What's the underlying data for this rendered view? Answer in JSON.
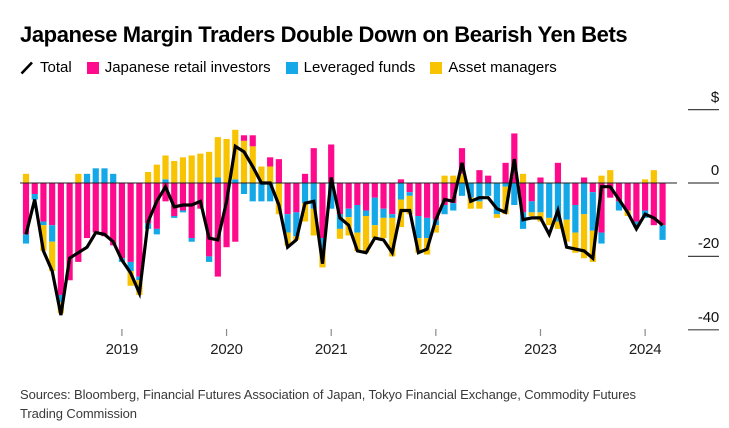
{
  "title": "Japanese Margin Traders Double Down on Bearish Yen Bets",
  "legend": {
    "total_label": "Total",
    "retail_label": "Japanese retail investors",
    "leveraged_label": "Leveraged funds",
    "asset_label": "Asset managers"
  },
  "sources": "Sources: Bloomberg, Financial Futures Association of Japan, Tokyo Financial Exchange, Commodity Futures Trading Commission",
  "colors": {
    "retail": "#ff0a8c",
    "leveraged": "#14a8e8",
    "asset": "#f8c300",
    "total": "#000000",
    "background": "#ffffff",
    "zero_line": "#222222",
    "x_tick": "#8a8a8a",
    "y_tick": "#444444"
  },
  "chart_data": {
    "type": "bar",
    "subtype": "stacked-monthly-bars-with-total-line-overlay",
    "unit_label": "$",
    "grid": "off",
    "legend_position": "top",
    "x_axis": {
      "tick_labels": [
        "2019",
        "2020",
        "2021",
        "2022",
        "2023",
        "2024"
      ],
      "tick_month_index": [
        11,
        23,
        35,
        47,
        59,
        71
      ]
    },
    "y_axis": {
      "ticks": [
        {
          "label": "$",
          "value": 20
        },
        {
          "label": "0",
          "value": 0
        },
        {
          "label": "-20",
          "value": -20
        },
        {
          "label": "-40",
          "value": -40
        }
      ],
      "range": [
        -45,
        22
      ]
    },
    "series": [
      {
        "name": "Japanese retail investors",
        "render": "bar",
        "color": "#ff0a8c",
        "values": [
          -14,
          -3,
          -10.5,
          -11.5,
          -30.5,
          -26.5,
          -21.5,
          -15,
          -13.5,
          -14.5,
          -17,
          -20.5,
          -21.5,
          -25.5,
          -11,
          -12.5,
          -5,
          -9,
          -7.5,
          -15,
          -7,
          -20,
          -25.5,
          -17.5,
          -16,
          1.5,
          3,
          0,
          2.5,
          6.5,
          -8.5,
          -8,
          2.5,
          9.5,
          -15,
          10.5,
          -8.5,
          -7,
          -6,
          -7.5,
          -4,
          -7,
          -8.5,
          1,
          -2.5,
          -9,
          -9.5,
          -10,
          -6,
          -5.5,
          7,
          0,
          3.5,
          2,
          0,
          5.5,
          13.5,
          -8,
          -5,
          1.5,
          0,
          5.5,
          0,
          -6,
          1.5,
          -2.5,
          -13.5,
          -4,
          -5,
          -7.5,
          -10.5,
          -7.5,
          -11.5,
          -11.5
        ]
      },
      {
        "name": "Leveraged funds",
        "render": "bar",
        "color": "#14a8e8",
        "values": [
          -2.5,
          -1.5,
          -1,
          -4.5,
          -2,
          0,
          0,
          2.5,
          4,
          4,
          2.5,
          -1,
          -2.5,
          -1,
          -1.5,
          -1.5,
          1,
          -0.5,
          -0.5,
          -1,
          0,
          -1.5,
          1.5,
          0,
          1,
          -3,
          -5,
          -5,
          -5,
          0,
          -5,
          -6.5,
          -5.5,
          -7,
          -3,
          -7,
          -4,
          -2.3,
          -7.5,
          -1.5,
          -7.5,
          -2.5,
          -1,
          -4.5,
          -1,
          -6,
          -5.5,
          -1.5,
          -2.5,
          -2,
          -3.5,
          -4,
          -5,
          -3.5,
          -8.5,
          -1,
          -6,
          -4.5,
          -3,
          -8,
          -9.5,
          -10.5,
          -10,
          -7.5,
          -8.5,
          -10.5,
          -3,
          0,
          -2.5,
          0,
          -1.5,
          -2,
          0,
          -4
        ]
      },
      {
        "name": "Asset managers",
        "render": "bar",
        "color": "#f8c300",
        "values": [
          2.5,
          0,
          -7,
          -8,
          -3,
          0,
          2.5,
          0,
          0,
          0,
          0,
          0,
          -4,
          -4,
          3,
          5,
          6.5,
          6,
          7,
          7.5,
          8,
          8.5,
          11,
          12,
          13.5,
          11.5,
          10,
          4.5,
          4.5,
          -8.5,
          -3.5,
          -1,
          -5,
          -7.3,
          -5,
          0,
          -2.7,
          -5,
          -5,
          -10,
          -3.5,
          -5.5,
          -10.5,
          -7.5,
          -5,
          -4,
          -4.5,
          -2,
          2,
          2,
          2.5,
          -3,
          -2,
          0,
          -1,
          -7.5,
          0,
          2.5,
          -1,
          -2.5,
          -2,
          -2,
          -6,
          -5.5,
          -12,
          -8.5,
          2,
          3.5,
          0,
          -1.5,
          0,
          1,
          3.5,
          0
        ]
      },
      {
        "name": "Total",
        "render": "line",
        "color": "#000000",
        "values": [
          -14,
          -4.5,
          -18.5,
          -24,
          -36,
          -20.5,
          -19,
          -17.5,
          -13.5,
          -14,
          -16,
          -21,
          -24.5,
          -30,
          -10.5,
          -5,
          -1,
          -6.5,
          -6,
          -6,
          -5,
          -15,
          -15.5,
          -5,
          10,
          8.5,
          4.5,
          0,
          0,
          -6,
          -17.5,
          -15.5,
          -5.5,
          -5,
          -22,
          1.5,
          -9.5,
          -11.5,
          -18.5,
          -19,
          -15,
          -15.5,
          -19,
          -7.5,
          -7.5,
          -19,
          -18,
          -10,
          -4.5,
          -5,
          5.5,
          -5,
          -4,
          -4,
          -7,
          -8,
          6.5,
          -10,
          -9.5,
          -9.5,
          -14,
          -7.5,
          -17.5,
          -18,
          -18.5,
          -20.5,
          -1,
          -1,
          -4.5,
          -8,
          -12.5,
          -8.5,
          -9.5,
          -11.5
        ]
      }
    ]
  }
}
